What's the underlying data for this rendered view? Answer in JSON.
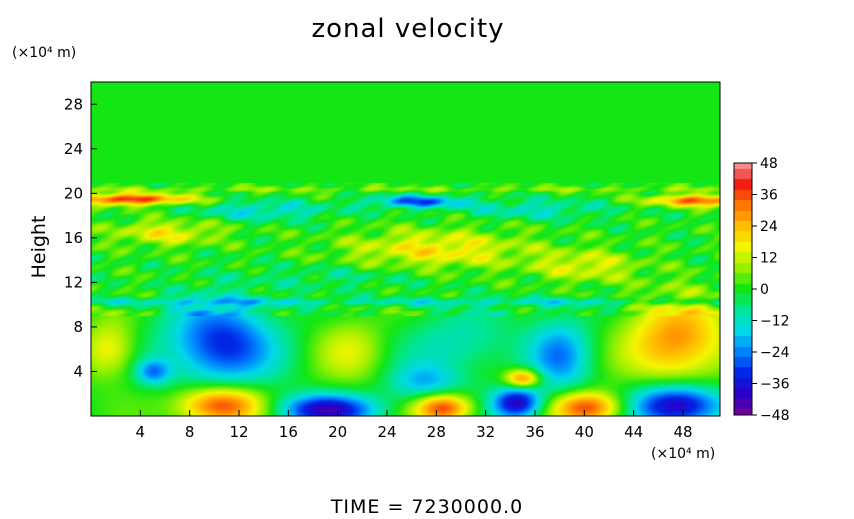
{
  "chart_data": {
    "type": "heatmap",
    "title": "zonal velocity",
    "ylabel": "Height",
    "y_units": "(×10⁴ m)",
    "x_units": "(×10⁴ m)",
    "x_ticks": [
      4,
      8,
      12,
      16,
      20,
      24,
      28,
      32,
      36,
      40,
      44,
      48
    ],
    "y_ticks": [
      4,
      8,
      12,
      16,
      20,
      24,
      28
    ],
    "xlim": [
      0,
      51
    ],
    "ylim": [
      0,
      30
    ],
    "colorbar": {
      "ticks": [
        48,
        36,
        24,
        12,
        0,
        -12,
        -24,
        -36,
        -48
      ],
      "labels": [
        "48",
        "36",
        "24",
        "12",
        "0",
        "−12",
        "−24",
        "−36",
        "−48"
      ],
      "range": [
        -48,
        48
      ]
    },
    "features": [
      {
        "x": 10.5,
        "y": 6.5,
        "value": -34,
        "sx": 3.0,
        "sy": 2.6
      },
      {
        "x": 47.5,
        "y": 6.8,
        "value": 30,
        "sx": 2.8,
        "sy": 2.6
      },
      {
        "x": 10.5,
        "y": 1.0,
        "value": 40,
        "sx": 2.4,
        "sy": 1.2
      },
      {
        "x": 19.0,
        "y": 0.6,
        "value": -40,
        "sx": 2.8,
        "sy": 1.0
      },
      {
        "x": 28.5,
        "y": 0.8,
        "value": 38,
        "sx": 1.6,
        "sy": 0.9
      },
      {
        "x": 34.5,
        "y": 1.2,
        "value": -40,
        "sx": 1.4,
        "sy": 1.0
      },
      {
        "x": 40.2,
        "y": 0.8,
        "value": 38,
        "sx": 2.0,
        "sy": 1.0
      },
      {
        "x": 47.5,
        "y": 1.0,
        "value": -44,
        "sx": 2.6,
        "sy": 1.3
      },
      {
        "x": 35.0,
        "y": 3.4,
        "value": 34,
        "sx": 1.0,
        "sy": 0.6
      },
      {
        "x": 38.0,
        "y": 5.5,
        "value": -22,
        "sx": 1.8,
        "sy": 2.4
      },
      {
        "x": 27.0,
        "y": 3.0,
        "value": -18,
        "sx": 2.0,
        "sy": 1.2
      },
      {
        "x": 5.0,
        "y": 4.0,
        "value": -22,
        "sx": 1.0,
        "sy": 0.8
      },
      {
        "x": 1.5,
        "y": 6.0,
        "value": 18,
        "sx": 1.5,
        "sy": 1.8
      },
      {
        "x": 30.0,
        "y": 6.5,
        "value": -12,
        "sx": 3.0,
        "sy": 2.0
      },
      {
        "x": 21.0,
        "y": 6.0,
        "value": 12,
        "sx": 2.0,
        "sy": 2.0
      },
      {
        "x": 26.5,
        "y": 19.3,
        "value": -28,
        "sx": 2.6,
        "sy": 0.4
      },
      {
        "x": 3.0,
        "y": 19.5,
        "value": 40,
        "sx": 3.5,
        "sy": 0.35
      },
      {
        "x": 49.5,
        "y": 19.4,
        "value": 36,
        "sx": 2.8,
        "sy": 0.35
      },
      {
        "x": 14.0,
        "y": 18.5,
        "value": -14,
        "sx": 4.0,
        "sy": 0.6
      },
      {
        "x": 36.0,
        "y": 18.6,
        "value": -12,
        "sx": 4.0,
        "sy": 0.6
      },
      {
        "x": 28.0,
        "y": 15.0,
        "value": 18,
        "sx": 5.0,
        "sy": 1.2
      },
      {
        "x": 6.0,
        "y": 16.5,
        "value": 16,
        "sx": 3.0,
        "sy": 0.8
      },
      {
        "x": 40.0,
        "y": 13.5,
        "value": 14,
        "sx": 3.0,
        "sy": 1.0
      },
      {
        "x": 20.0,
        "y": 12.5,
        "value": -6,
        "sx": 5.0,
        "sy": 0.8
      }
    ]
  },
  "time_label": "TIME  =  7230000.0"
}
